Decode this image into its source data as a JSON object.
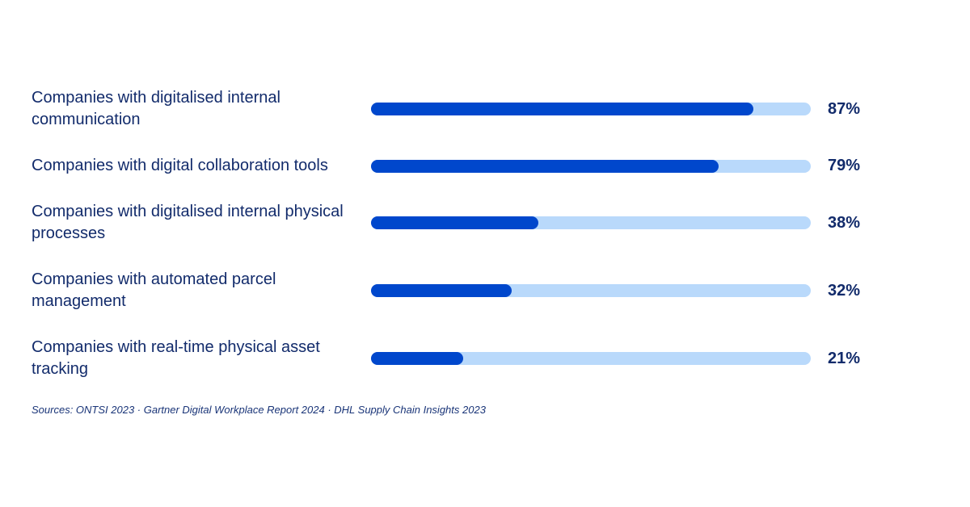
{
  "chart_data": {
    "type": "progress-bar",
    "categories": [
      "Companies with digitalised internal communication",
      "Companies with digital collaboration tools",
      "Companies with digitalised internal physical processes",
      "Companies with automated parcel management",
      "Companies with real-time physical asset tracking"
    ],
    "values": [
      87,
      79,
      38,
      32,
      21
    ],
    "value_labels": [
      "87%",
      "79%",
      "38%",
      "32%",
      "21%"
    ],
    "xlim": [
      0,
      100
    ],
    "color": "#0047cc",
    "track_color": "#b9d9fb",
    "source": "Sources: ONTSI 2023 · Gartner Digital Workplace Report 2024 · DHL Supply Chain Insights 2023"
  }
}
